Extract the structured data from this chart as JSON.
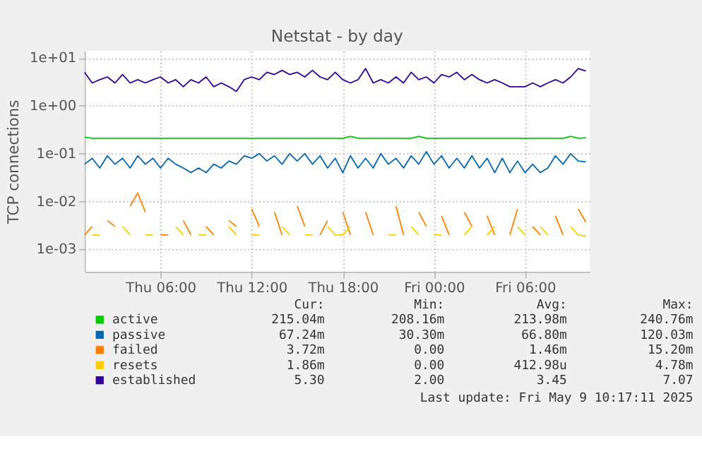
{
  "chart_data": {
    "type": "line",
    "title": "Netstat - by day",
    "ylabel": "TCP connections",
    "log": "y",
    "grid": true,
    "legend": "bottom",
    "xlim": [
      "2025-05-08T01:00",
      "2025-05-09T10:15"
    ],
    "xticks": [
      {
        "value": "2025-05-08T06:00",
        "label": "Thu 06:00"
      },
      {
        "value": "2025-05-08T12:00",
        "label": "Thu 12:00"
      },
      {
        "value": "2025-05-08T18:00",
        "label": "Thu 18:00"
      },
      {
        "value": "2025-05-09T00:00",
        "label": "Fri 00:00"
      },
      {
        "value": "2025-05-09T06:00",
        "label": "Fri 06:00"
      }
    ],
    "ylim": [
      0.00034,
      14
    ],
    "yticks": [
      {
        "value": 0.001,
        "label": "1e-03"
      },
      {
        "value": 0.01,
        "label": "1e-02"
      },
      {
        "value": 0.1,
        "label": "1e-01"
      },
      {
        "value": 1,
        "label": "1e+00"
      },
      {
        "value": 10,
        "label": "1e+01"
      }
    ],
    "x": [
      "2025-05-08T01:00",
      "2025-05-08T01:30",
      "2025-05-08T02:00",
      "2025-05-08T02:30",
      "2025-05-08T03:00",
      "2025-05-08T03:30",
      "2025-05-08T04:00",
      "2025-05-08T04:30",
      "2025-05-08T05:00",
      "2025-05-08T05:30",
      "2025-05-08T06:00",
      "2025-05-08T06:30",
      "2025-05-08T07:00",
      "2025-05-08T07:30",
      "2025-05-08T08:00",
      "2025-05-08T08:30",
      "2025-05-08T09:00",
      "2025-05-08T09:30",
      "2025-05-08T10:00",
      "2025-05-08T10:30",
      "2025-05-08T11:00",
      "2025-05-08T11:30",
      "2025-05-08T12:00",
      "2025-05-08T12:30",
      "2025-05-08T13:00",
      "2025-05-08T13:30",
      "2025-05-08T14:00",
      "2025-05-08T14:30",
      "2025-05-08T15:00",
      "2025-05-08T15:30",
      "2025-05-08T16:00",
      "2025-05-08T16:30",
      "2025-05-08T17:00",
      "2025-05-08T17:30",
      "2025-05-08T18:00",
      "2025-05-08T18:30",
      "2025-05-08T19:00",
      "2025-05-08T19:30",
      "2025-05-08T20:00",
      "2025-05-08T20:30",
      "2025-05-08T21:00",
      "2025-05-08T21:30",
      "2025-05-08T22:00",
      "2025-05-08T22:30",
      "2025-05-08T23:00",
      "2025-05-08T23:30",
      "2025-05-09T00:00",
      "2025-05-09T00:30",
      "2025-05-09T01:00",
      "2025-05-09T01:30",
      "2025-05-09T02:00",
      "2025-05-09T02:30",
      "2025-05-09T03:00",
      "2025-05-09T03:30",
      "2025-05-09T04:00",
      "2025-05-09T04:30",
      "2025-05-09T05:00",
      "2025-05-09T05:30",
      "2025-05-09T06:00",
      "2025-05-09T06:30",
      "2025-05-09T07:00",
      "2025-05-09T07:30",
      "2025-05-09T08:00",
      "2025-05-09T08:30",
      "2025-05-09T09:00",
      "2025-05-09T09:30",
      "2025-05-09T10:00"
    ],
    "series": [
      {
        "name": "active",
        "color": "#00cc00",
        "values": [
          0.22,
          0.21,
          0.21,
          0.21,
          0.21,
          0.21,
          0.21,
          0.21,
          0.21,
          0.21,
          0.21,
          0.21,
          0.21,
          0.21,
          0.21,
          0.21,
          0.21,
          0.21,
          0.21,
          0.21,
          0.21,
          0.21,
          0.21,
          0.21,
          0.21,
          0.21,
          0.21,
          0.21,
          0.21,
          0.21,
          0.21,
          0.21,
          0.21,
          0.21,
          0.21,
          0.23,
          0.21,
          0.21,
          0.21,
          0.21,
          0.21,
          0.21,
          0.21,
          0.21,
          0.23,
          0.21,
          0.21,
          0.21,
          0.21,
          0.21,
          0.21,
          0.21,
          0.21,
          0.21,
          0.21,
          0.21,
          0.21,
          0.21,
          0.21,
          0.21,
          0.21,
          0.21,
          0.21,
          0.21,
          0.23,
          0.21,
          0.215
        ]
      },
      {
        "name": "passive",
        "color": "#0066b3",
        "values": [
          0.06,
          0.08,
          0.05,
          0.09,
          0.06,
          0.08,
          0.05,
          0.09,
          0.06,
          0.08,
          0.05,
          0.08,
          0.06,
          0.05,
          0.04,
          0.05,
          0.04,
          0.06,
          0.05,
          0.07,
          0.06,
          0.09,
          0.08,
          0.1,
          0.07,
          0.09,
          0.06,
          0.1,
          0.07,
          0.1,
          0.06,
          0.09,
          0.05,
          0.08,
          0.04,
          0.09,
          0.05,
          0.08,
          0.05,
          0.1,
          0.06,
          0.08,
          0.05,
          0.09,
          0.06,
          0.11,
          0.06,
          0.09,
          0.05,
          0.08,
          0.05,
          0.09,
          0.05,
          0.08,
          0.04,
          0.08,
          0.04,
          0.07,
          0.04,
          0.06,
          0.04,
          0.05,
          0.09,
          0.06,
          0.1,
          0.07,
          0.067
        ]
      },
      {
        "name": "failed",
        "color": "#ff8000",
        "values": [
          0.002,
          0.003,
          null,
          0.004,
          0.003,
          null,
          0.008,
          0.015,
          0.006,
          null,
          0.002,
          0.002,
          null,
          0.004,
          0.002,
          null,
          0.003,
          0.002,
          null,
          0.004,
          0.003,
          null,
          0.007,
          0.003,
          null,
          0.006,
          0.002,
          null,
          0.008,
          0.003,
          null,
          0.002,
          0.004,
          null,
          0.006,
          0.002,
          null,
          0.006,
          0.002,
          null,
          null,
          0.008,
          0.002,
          null,
          0.006,
          0.003,
          null,
          0.005,
          0.002,
          null,
          0.006,
          0.003,
          null,
          0.005,
          0.002,
          null,
          0.002,
          0.007,
          null,
          0.003,
          0.002,
          null,
          0.005,
          0.002,
          null,
          0.007,
          0.0037
        ]
      },
      {
        "name": "resets",
        "color": "#ffcc00",
        "values": [
          null,
          0.002,
          0.002,
          null,
          null,
          0.003,
          0.002,
          null,
          0.002,
          0.002,
          null,
          null,
          0.003,
          0.002,
          null,
          0.002,
          0.002,
          null,
          null,
          0.003,
          0.002,
          null,
          0.002,
          0.002,
          null,
          null,
          0.003,
          0.002,
          null,
          0.002,
          0.002,
          null,
          0.003,
          0.002,
          0.002,
          0.003,
          null,
          null,
          null,
          null,
          0.002,
          0.002,
          null,
          0.003,
          0.002,
          null,
          0.002,
          0.002,
          null,
          null,
          0.002,
          0.003,
          null,
          0.002,
          0.003,
          null,
          null,
          0.003,
          0.002,
          null,
          0.003,
          0.002,
          null,
          null,
          0.003,
          0.002,
          0.0019
        ]
      },
      {
        "name": "established",
        "color": "#330099",
        "values": [
          5,
          3,
          3.5,
          4,
          3,
          4.5,
          3,
          3.5,
          3,
          3.5,
          4,
          3,
          3.5,
          2.5,
          3.5,
          3,
          4,
          2.5,
          3,
          2.5,
          2,
          3.5,
          4,
          3.5,
          5,
          4.5,
          5.5,
          4.5,
          5,
          4,
          5.5,
          4,
          3.5,
          5,
          3.5,
          3,
          3.5,
          6,
          3,
          3.5,
          3,
          4,
          3,
          5,
          3.5,
          4,
          3,
          4.5,
          4,
          5,
          3.5,
          4.5,
          3.5,
          3,
          3.5,
          3,
          2.5,
          2.5,
          2.5,
          3,
          2.5,
          3,
          3.5,
          3,
          4,
          6,
          5.3
        ]
      }
    ],
    "annotations": [
      "Cur:",
      "Min:",
      "Avg:",
      "Max:",
      "215.04m",
      "208.16m",
      "213.98m",
      "240.76m",
      "67.24m",
      "30.30m",
      "66.80m",
      "120.03m",
      "3.72m",
      "0.00",
      "1.46m",
      "15.20m",
      "1.86m",
      "0.00",
      "412.98u",
      "4.78m",
      "5.30",
      "2.00",
      "3.45",
      "7.07",
      "Last update: Fri May  9 10:17:11 2025"
    ]
  }
}
